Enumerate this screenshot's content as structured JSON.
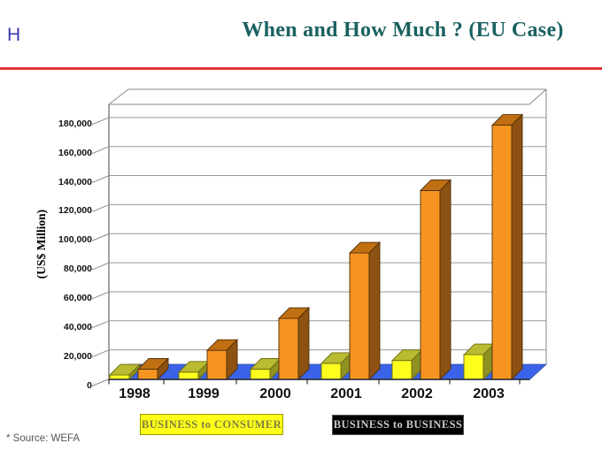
{
  "slide": {
    "logo_text": "H",
    "title": "When and How Much ? (EU Case)",
    "source_note": "* Source:  WEFA"
  },
  "chart_data": {
    "type": "bar",
    "style": "3d-clustered-column",
    "title": "",
    "xlabel": "",
    "ylabel": "(US$ Million)",
    "categories": [
      "1998",
      "1999",
      "2000",
      "2001",
      "2002",
      "2003"
    ],
    "series": [
      {
        "key": "b2c",
        "name": "BUSINESS to CONSUMER",
        "values": [
          3000,
          5000,
          7000,
          11000,
          13000,
          17000
        ],
        "color_front": "#FFFF1E",
        "color_top": "#B9BB30",
        "color_side": "#8F9122",
        "outline": "#6b6b13",
        "legend_bg": "#FFFF19",
        "legend_text_color": "#7F7F42"
      },
      {
        "key": "b2b",
        "name": "BUSINESS to BUSINESS",
        "values": [
          7000,
          20000,
          42000,
          87000,
          130000,
          175000
        ],
        "color_front": "#F79421",
        "color_top": "#C06F12",
        "color_side": "#8D5212",
        "outline": "#4f2e08",
        "legend_bg": "#000000",
        "legend_text_color": "#C8C8C8"
      }
    ],
    "ylim": [
      0,
      180000
    ],
    "ytick_step": 20000,
    "ytick_labels": [
      "0",
      "20,000",
      "40,000",
      "60,000",
      "80,000",
      "100,000",
      "120,000",
      "140,000",
      "160,000",
      "180,000"
    ],
    "grid": true,
    "legend_position": "bottom",
    "floor_color": "#3A63E8"
  }
}
